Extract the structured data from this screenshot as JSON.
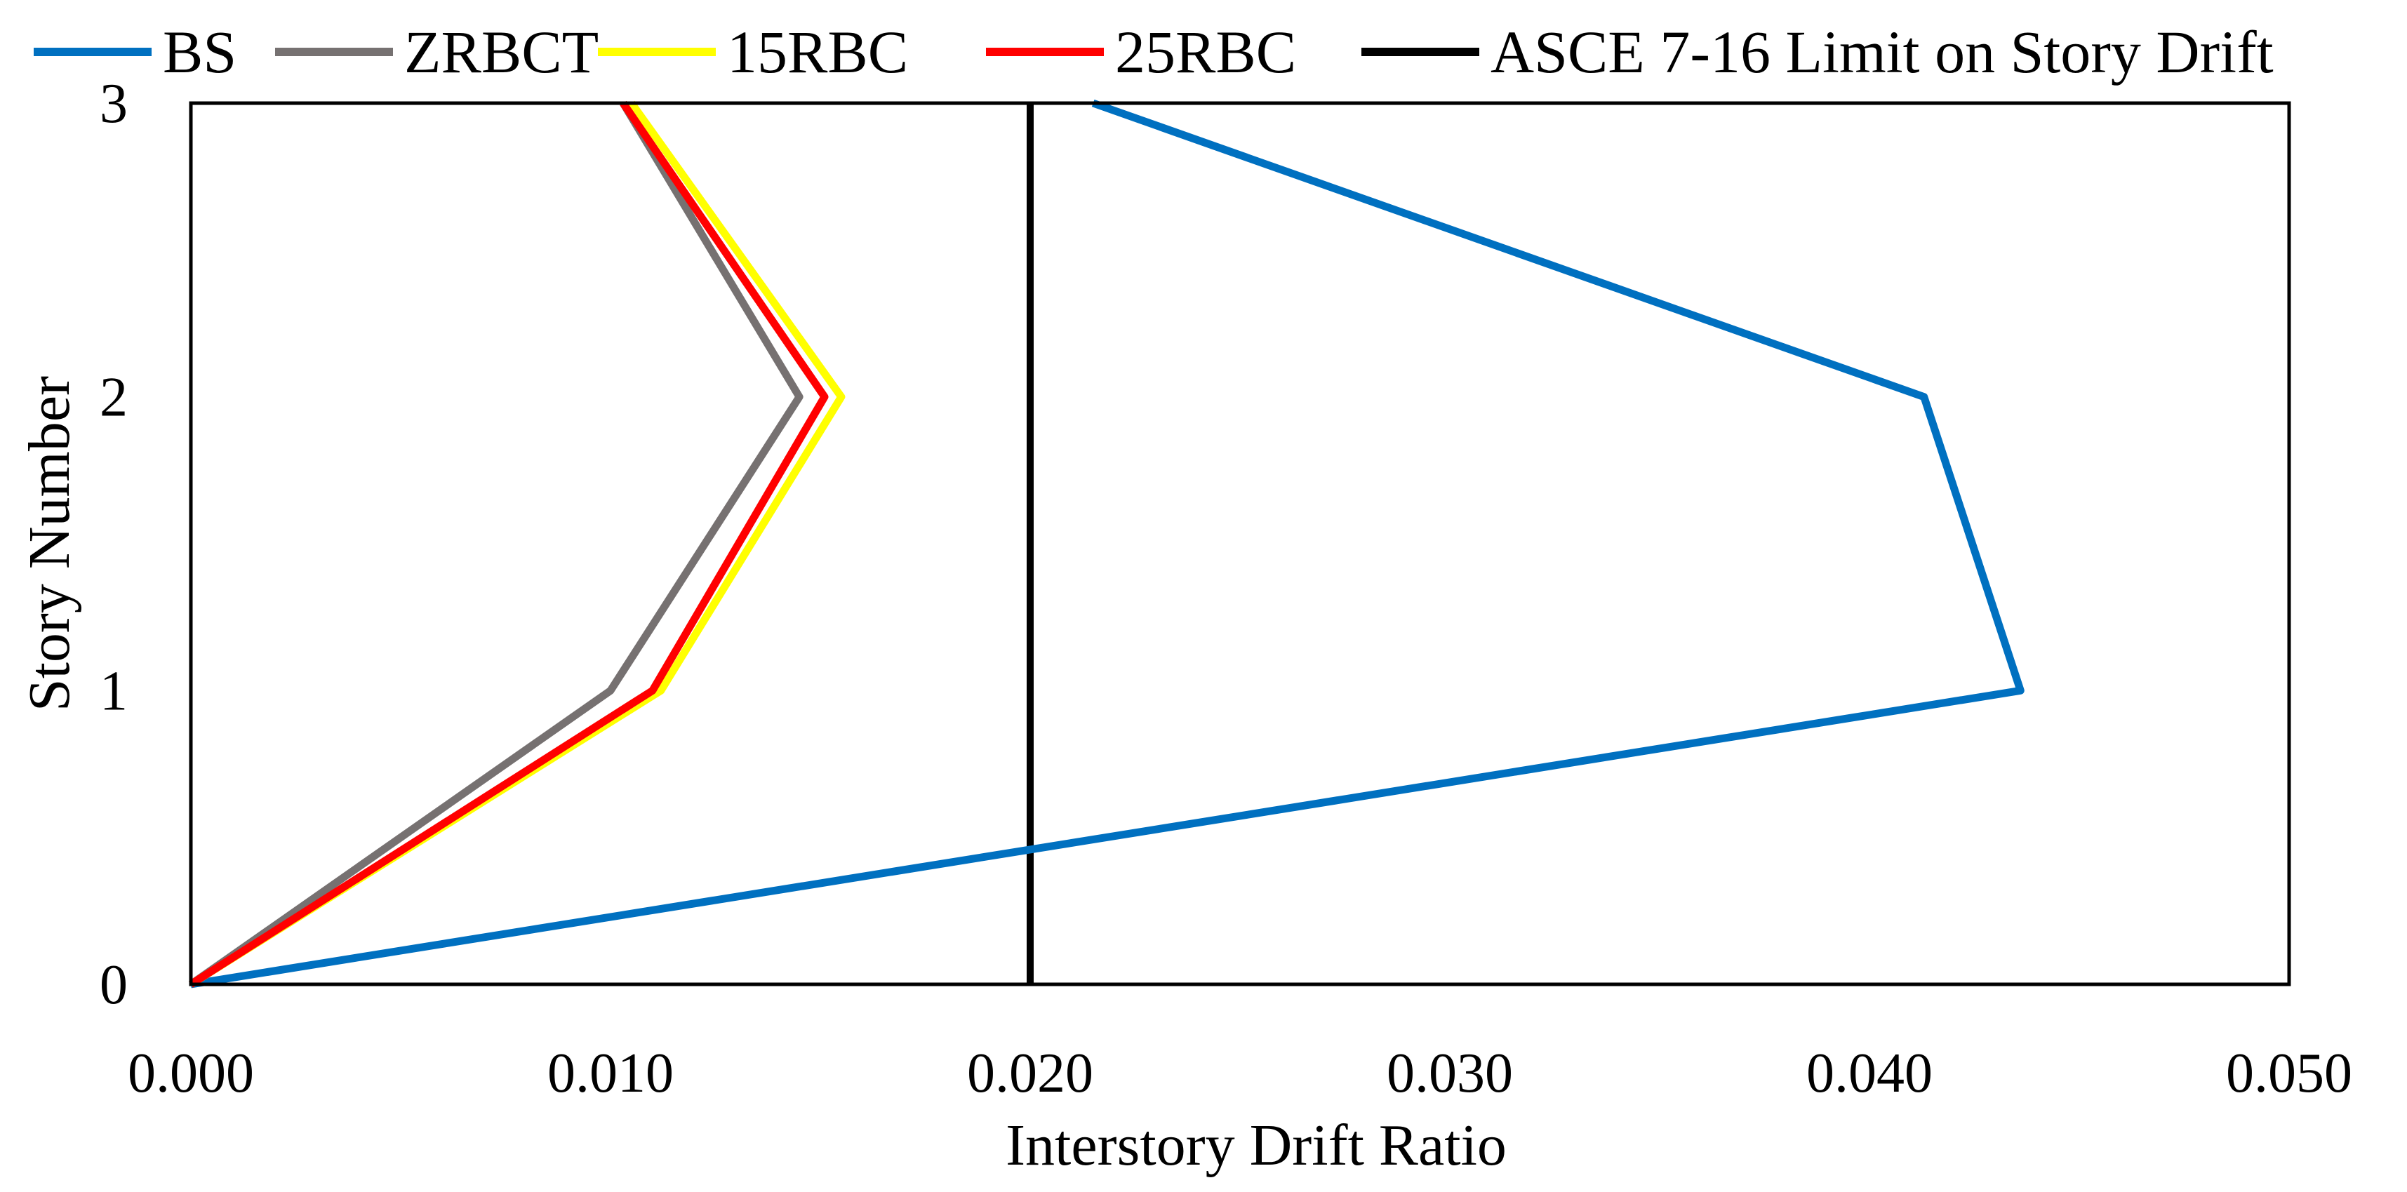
{
  "chart_data": {
    "type": "line",
    "title": "",
    "xlabel": "Interstory Drift Ratio",
    "ylabel": "Story Number",
    "xlim": [
      0,
      0.05
    ],
    "ylim": [
      0,
      3
    ],
    "x_ticks": [
      "0.000",
      "0.010",
      "0.020",
      "0.030",
      "0.040",
      "0.050"
    ],
    "x_tick_values": [
      0,
      0.01,
      0.02,
      0.03,
      0.04,
      0.05
    ],
    "y_ticks": [
      "0",
      "1",
      "2",
      "3"
    ],
    "y_tick_values": [
      0,
      1,
      2,
      3
    ],
    "grid": false,
    "legend_position": "top",
    "series": [
      {
        "name": "BS",
        "color": "#0070C0",
        "x": [
          0,
          0.0436,
          0.0413,
          0.0215
        ],
        "y": [
          0,
          1,
          2,
          3
        ]
      },
      {
        "name": "ZRBCT",
        "color": "#767171",
        "x": [
          0,
          0.01,
          0.0145,
          0.0103
        ],
        "y": [
          0,
          1,
          2,
          3
        ]
      },
      {
        "name": "15RBC",
        "color": "#FFFF00",
        "x": [
          0,
          0.0112,
          0.0155,
          0.0105
        ],
        "y": [
          0,
          1,
          2,
          3
        ]
      },
      {
        "name": "25RBC",
        "color": "#FF0000",
        "x": [
          0,
          0.011,
          0.0151,
          0.0103
        ],
        "y": [
          0,
          1,
          2,
          3
        ]
      },
      {
        "name": "ASCE 7-16 Limit on Story Drift",
        "color": "#000000",
        "x": [
          0.02,
          0.02
        ],
        "y": [
          0,
          3
        ]
      }
    ]
  }
}
